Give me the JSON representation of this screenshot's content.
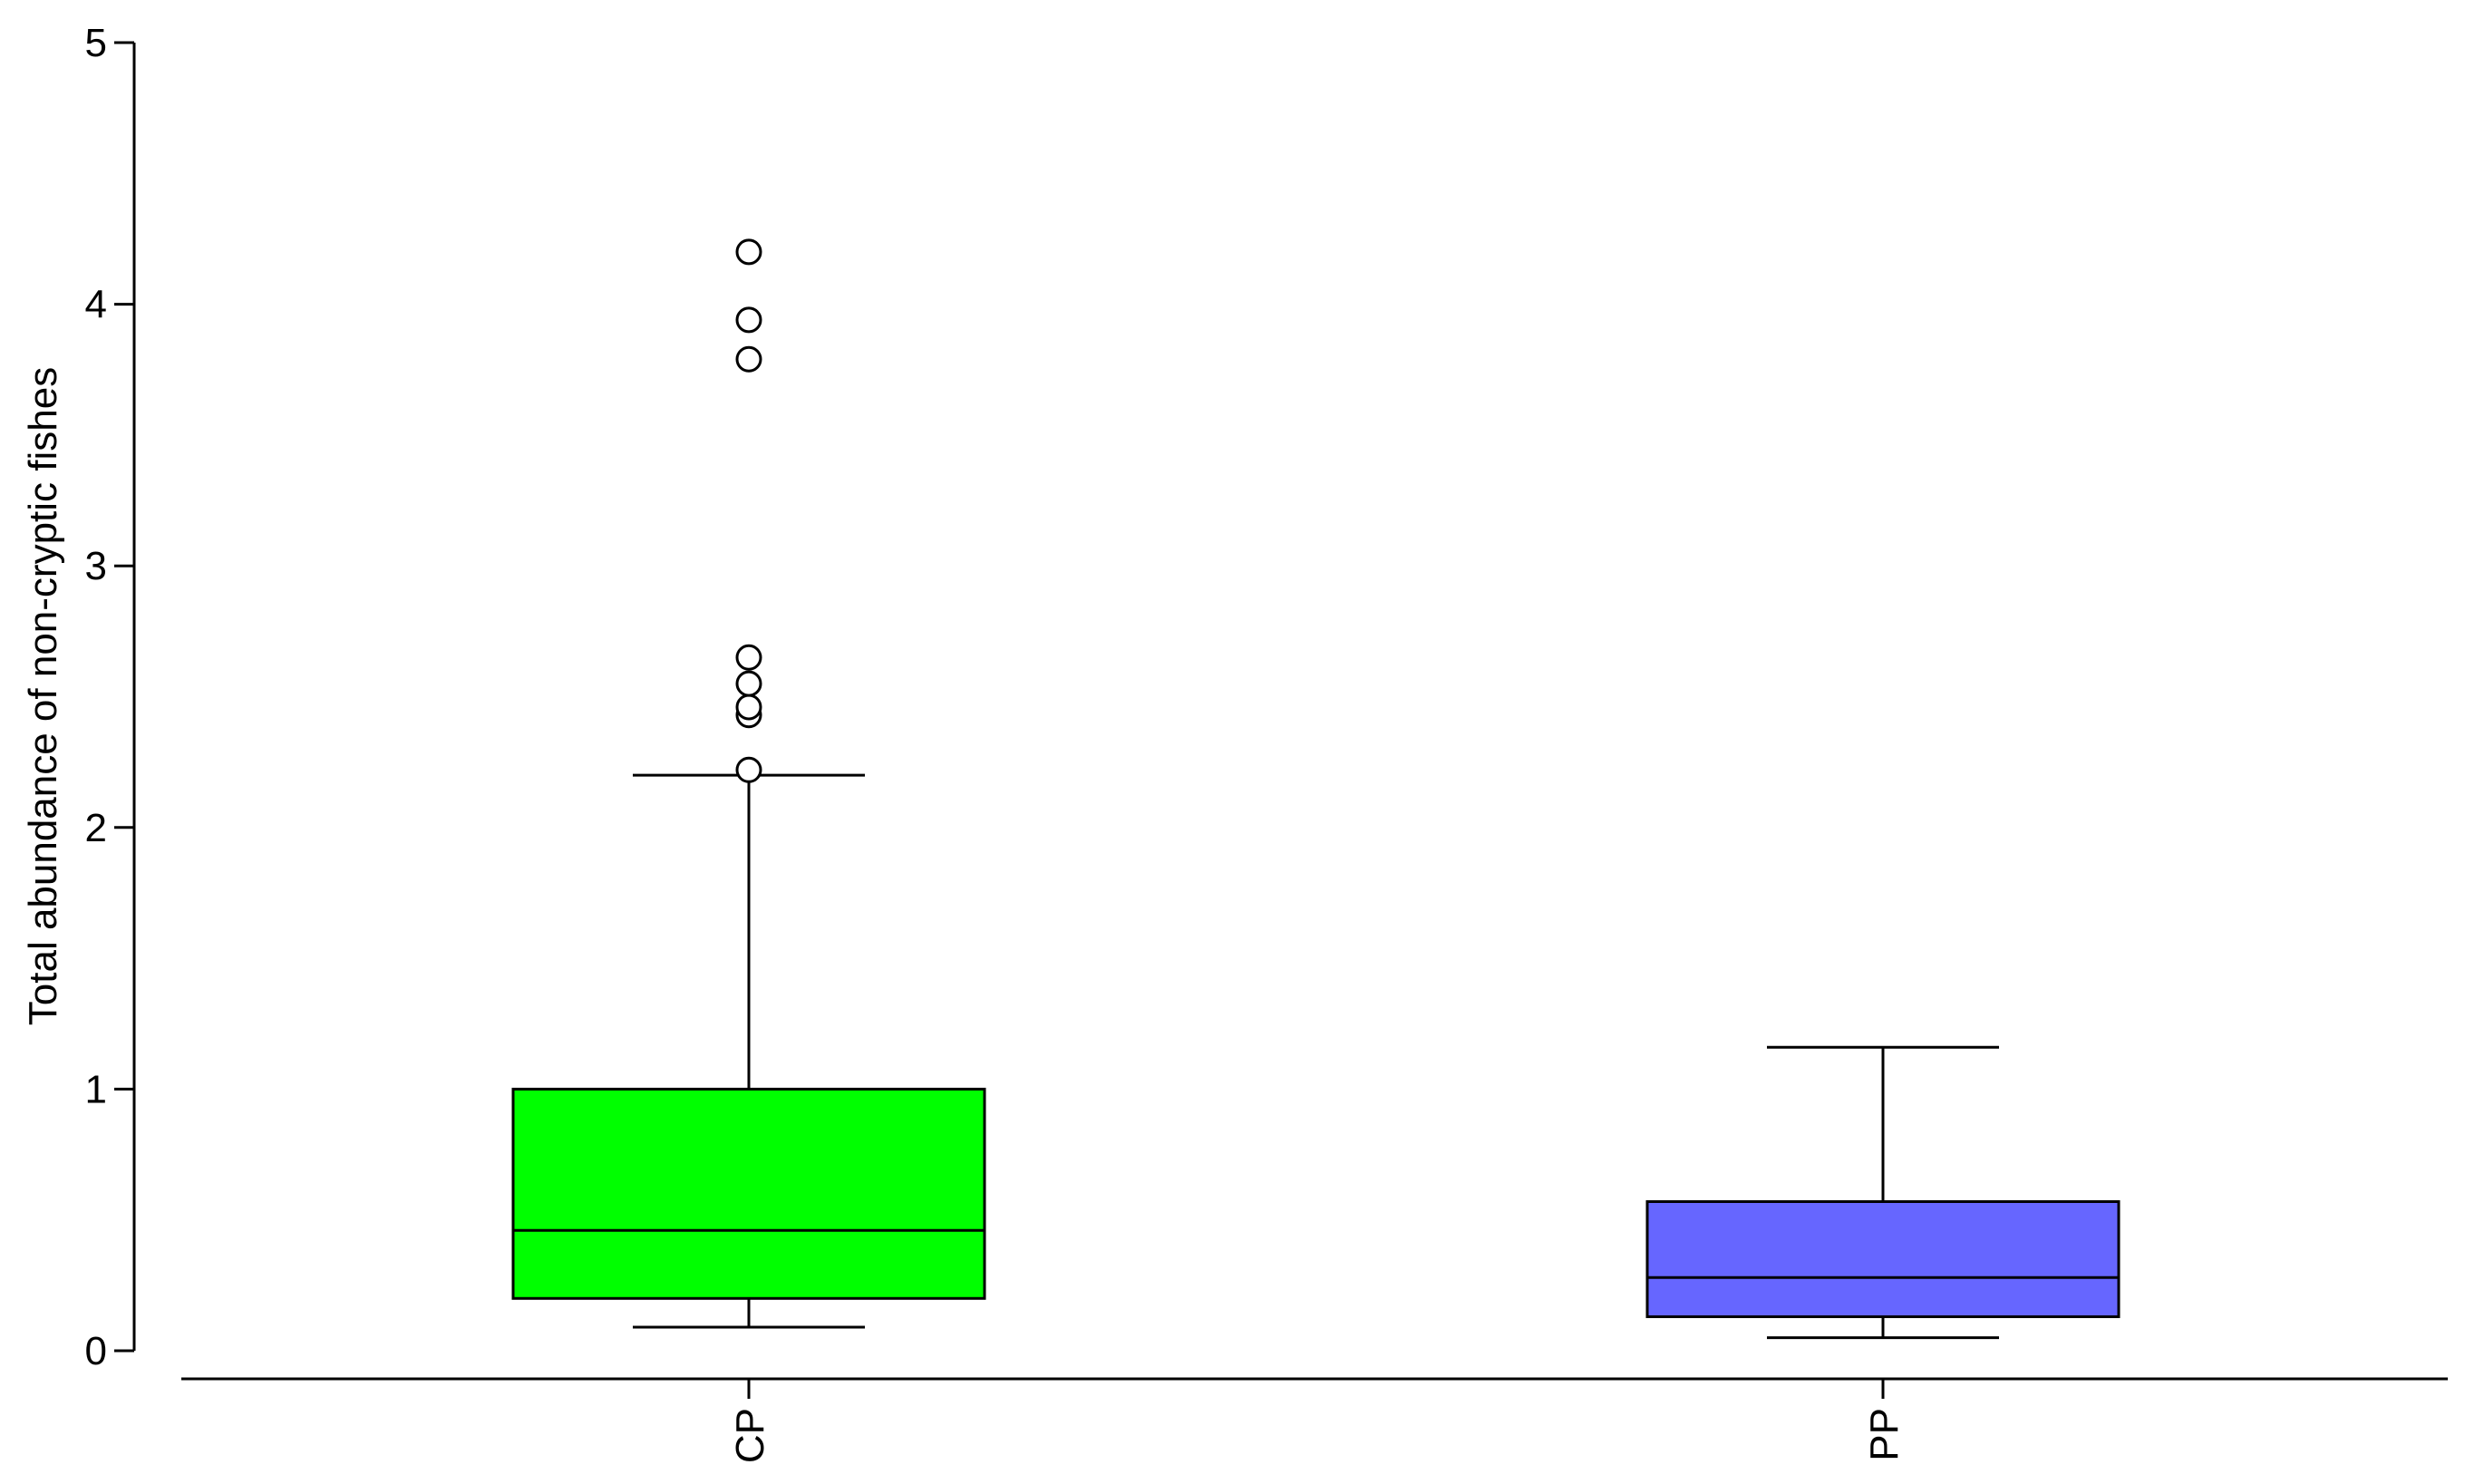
{
  "chart_data": {
    "type": "box",
    "title": "",
    "xlabel": "",
    "ylabel": "Total abundance of non-cryptic fishes",
    "ylim": [
      0,
      5
    ],
    "yticks": [
      0,
      1,
      2,
      3,
      4,
      5
    ],
    "categories": [
      "CP",
      "PP"
    ],
    "grid": false,
    "legend": "none",
    "boxes": [
      {
        "category": "CP",
        "color": "#00ff00",
        "whisker_low": 0.09,
        "q1": 0.2,
        "median": 0.46,
        "q3": 1.0,
        "whisker_high": 2.2,
        "outliers": [
          2.22,
          2.43,
          2.46,
          2.55,
          2.65,
          3.79,
          3.94,
          4.2
        ]
      },
      {
        "category": "PP",
        "color": "#6666ff",
        "whisker_low": 0.05,
        "q1": 0.13,
        "median": 0.28,
        "q3": 0.57,
        "whisker_high": 1.16,
        "outliers": []
      }
    ]
  }
}
